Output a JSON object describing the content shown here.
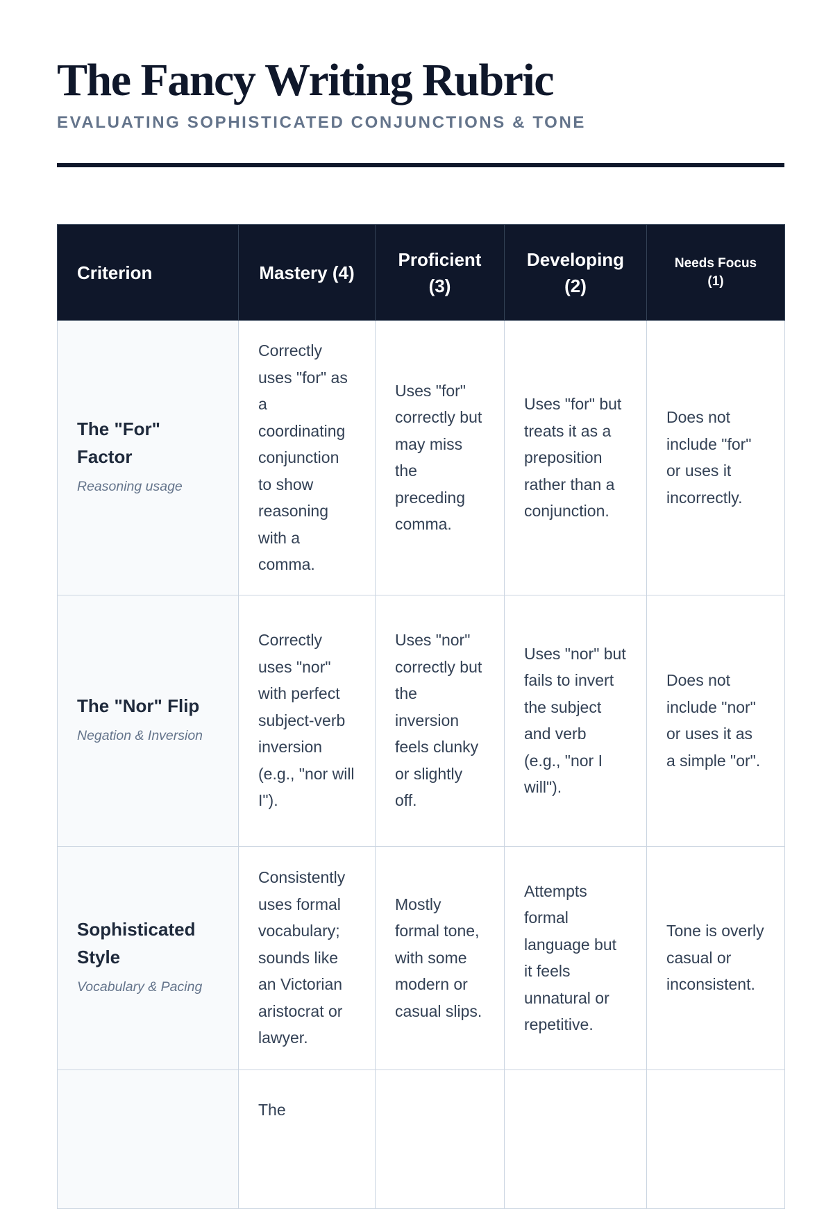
{
  "title": "The Fancy Writing Rubric",
  "subtitle": "EVALUATING SOPHISTICATED CONJUNCTIONS & TONE",
  "columns": [
    "Criterion",
    "Mastery (4)",
    "Proficient (3)",
    "Developing (2)",
    "Needs Focus (1)"
  ],
  "rows": [
    {
      "name": "The \"For\" Factor",
      "desc": "Reasoning usage",
      "cells": [
        "Correctly uses \"for\" as a coordinating conjunction to show reasoning with a comma.",
        "Uses \"for\" correctly but may miss the preceding comma.",
        "Uses \"for\" but treats it as a preposition rather than a conjunction.",
        "Does not include \"for\" or uses it incorrectly."
      ]
    },
    {
      "name": "The \"Nor\" Flip",
      "desc": "Negation & Inversion",
      "cells": [
        "Correctly uses \"nor\" with perfect subject-verb inversion (e.g., \"nor will I\").",
        "Uses \"nor\" correctly but the inversion feels clunky or slightly off.",
        "Uses \"nor\" but fails to invert the subject and verb (e.g., \"nor I will\").",
        "Does not include \"nor\" or uses it as a simple \"or\"."
      ]
    },
    {
      "name": "Sophisticated Style",
      "desc": "Vocabulary & Pacing",
      "cells": [
        "Consistently uses formal vocabulary; sounds like an Victorian aristocrat or lawyer.",
        "Mostly formal tone, with some modern or casual slips.",
        "Attempts formal language but it feels unnatural or repetitive.",
        "Tone is overly casual or inconsistent."
      ]
    },
    {
      "name": "",
      "desc": "",
      "cells": [
        "The",
        "",
        "",
        ""
      ]
    }
  ]
}
